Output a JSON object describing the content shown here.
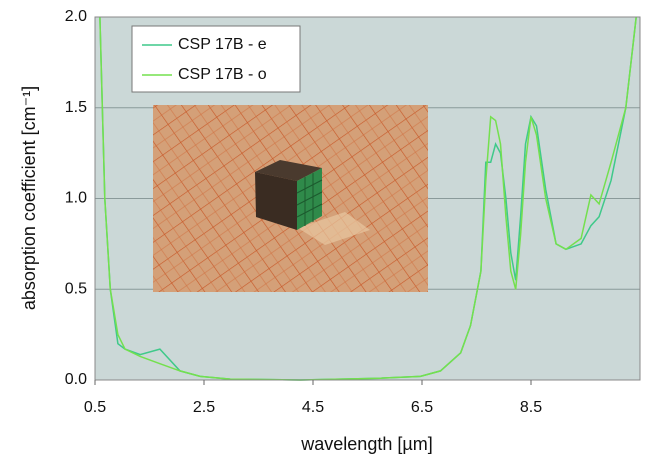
{
  "chart_data": {
    "type": "line",
    "xlabel": "wavelength [µm]",
    "ylabel": "absorption coefficient [cm⁻¹]",
    "x": [
      0.59,
      0.68,
      0.78,
      0.92,
      1.05,
      1.33,
      1.69,
      2.06,
      2.43,
      2.98,
      4.27,
      5.74,
      6.47,
      6.84,
      7.21,
      7.39,
      7.58,
      7.67,
      7.76,
      7.85,
      7.94,
      8.04,
      8.13,
      8.22,
      8.31,
      8.4,
      8.5,
      8.6,
      8.77,
      8.96,
      9.14,
      9.42,
      9.6,
      9.75,
      9.97,
      10.24,
      10.43
    ],
    "series": [
      {
        "name": "CSP 17B - e",
        "color": "#3fc98a",
        "values": [
          2.0,
          1.0,
          0.5,
          0.2,
          0.17,
          0.14,
          0.17,
          0.05,
          0.02,
          0.005,
          0,
          0.01,
          0.02,
          0.05,
          0.15,
          0.3,
          0.6,
          1.2,
          1.2,
          1.3,
          1.25,
          1.0,
          0.7,
          0.55,
          0.9,
          1.3,
          1.45,
          1.4,
          1.05,
          0.75,
          0.72,
          0.75,
          0.85,
          0.9,
          1.1,
          1.5,
          2.0
        ]
      },
      {
        "name": "CSP 17B - o",
        "color": "#74e04e",
        "values": [
          2.0,
          1.0,
          0.5,
          0.25,
          0.17,
          0.13,
          0.09,
          0.05,
          0.02,
          0.005,
          0,
          0.01,
          0.02,
          0.05,
          0.15,
          0.3,
          0.6,
          1.1,
          1.45,
          1.43,
          1.3,
          0.9,
          0.6,
          0.5,
          0.8,
          1.2,
          1.45,
          1.35,
          1.0,
          0.75,
          0.72,
          0.78,
          1.02,
          0.97,
          1.2,
          1.5,
          2.0
        ]
      }
    ],
    "xlim": [
      0.5,
      10.5
    ],
    "ylim": [
      0,
      2
    ],
    "xticks": [
      0.5,
      2.5,
      4.5,
      6.5,
      8.5
    ],
    "yticks": [
      {
        "value": 0,
        "label": "0.0"
      },
      0.5,
      {
        "value": 1,
        "label": "1.0"
      },
      1.5,
      {
        "value": 2,
        "label": "2.0"
      }
    ],
    "grid": true,
    "legend": "upper left"
  }
}
